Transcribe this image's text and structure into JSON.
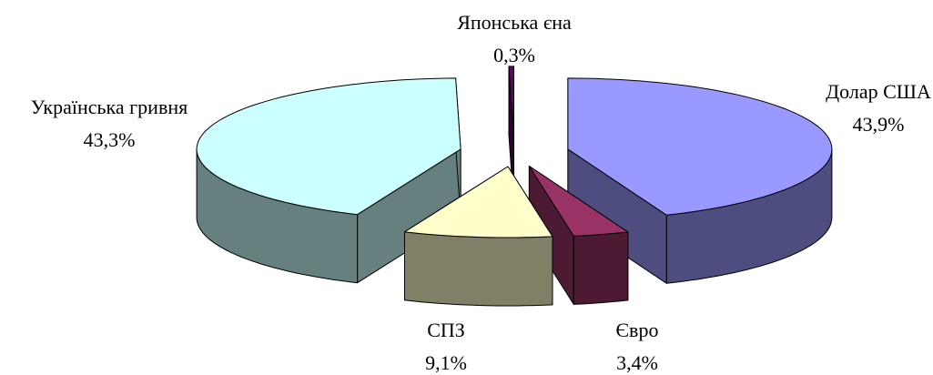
{
  "chart_data": {
    "type": "pie3d",
    "categories": [
      "Долар США",
      "Євро",
      "СПЗ",
      "Українська гривня",
      "Японська єна"
    ],
    "values": [
      43.9,
      3.4,
      9.1,
      43.3,
      0.3
    ],
    "value_labels": [
      "43,9%",
      "3,4%",
      "9,1%",
      "43,3%",
      "0,3%"
    ],
    "colors": [
      "#9999ff",
      "#993366",
      "#ffffcc",
      "#ccffff",
      "#660066"
    ],
    "side_colors": [
      "#4d4d80",
      "#4d1a33",
      "#808066",
      "#668080",
      "#330033"
    ]
  }
}
